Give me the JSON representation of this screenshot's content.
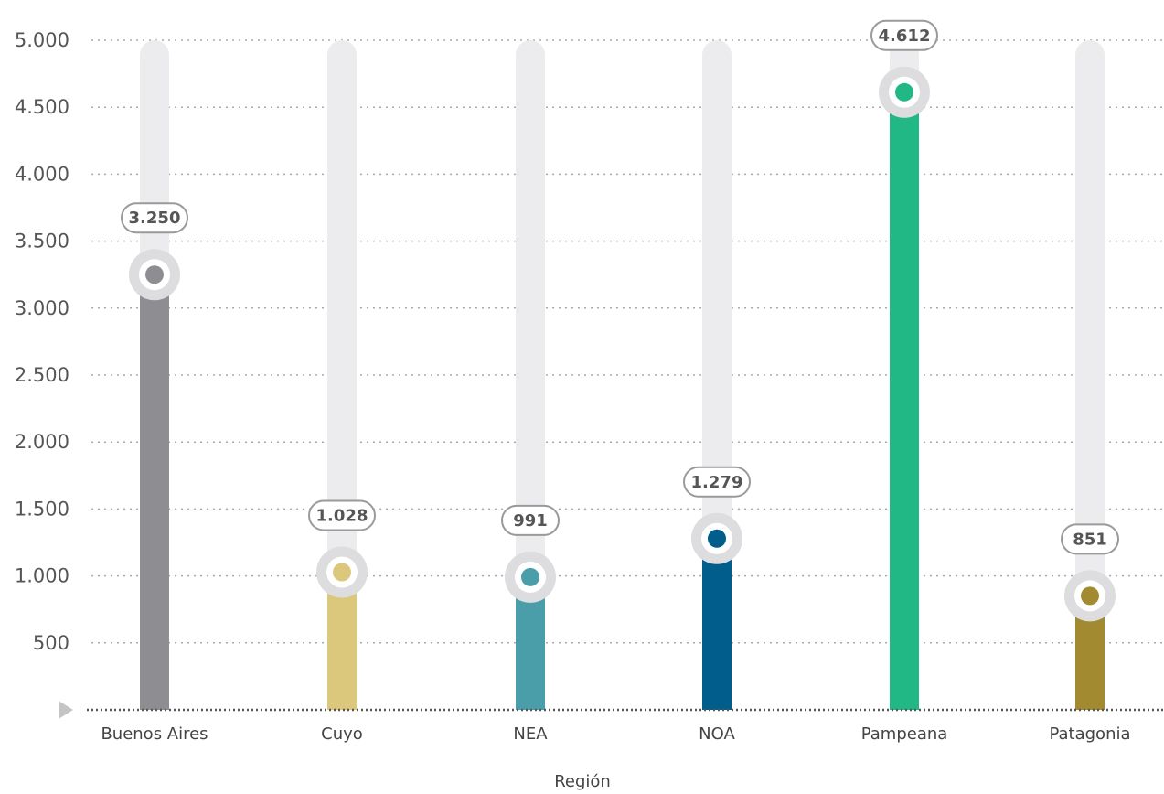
{
  "chart_data": {
    "type": "bar",
    "categories": [
      "Buenos Aires",
      "Cuyo",
      "NEA",
      "NOA",
      "Pampeana",
      "Patagonia"
    ],
    "values": [
      3250,
      1028,
      991,
      1279,
      4612,
      851
    ],
    "value_labels": [
      "3.250",
      "1.028",
      "991",
      "1.279",
      "4.612",
      "851"
    ],
    "colors": [
      "#8e8e92",
      "#dcc87c",
      "#4a9ea9",
      "#005d8c",
      "#22b886",
      "#a28a31"
    ],
    "yticks": [
      500,
      1000,
      1500,
      2000,
      2500,
      3000,
      3500,
      4000,
      4500,
      5000
    ],
    "ytick_labels": [
      "500",
      "1.000",
      "1.500",
      "2.000",
      "2.500",
      "3.000",
      "3.500",
      "4.000",
      "4.500",
      "5.000"
    ],
    "ylim": [
      0,
      5000
    ],
    "title": "",
    "xlabel": "Región",
    "ylabel": "",
    "grid": true
  }
}
